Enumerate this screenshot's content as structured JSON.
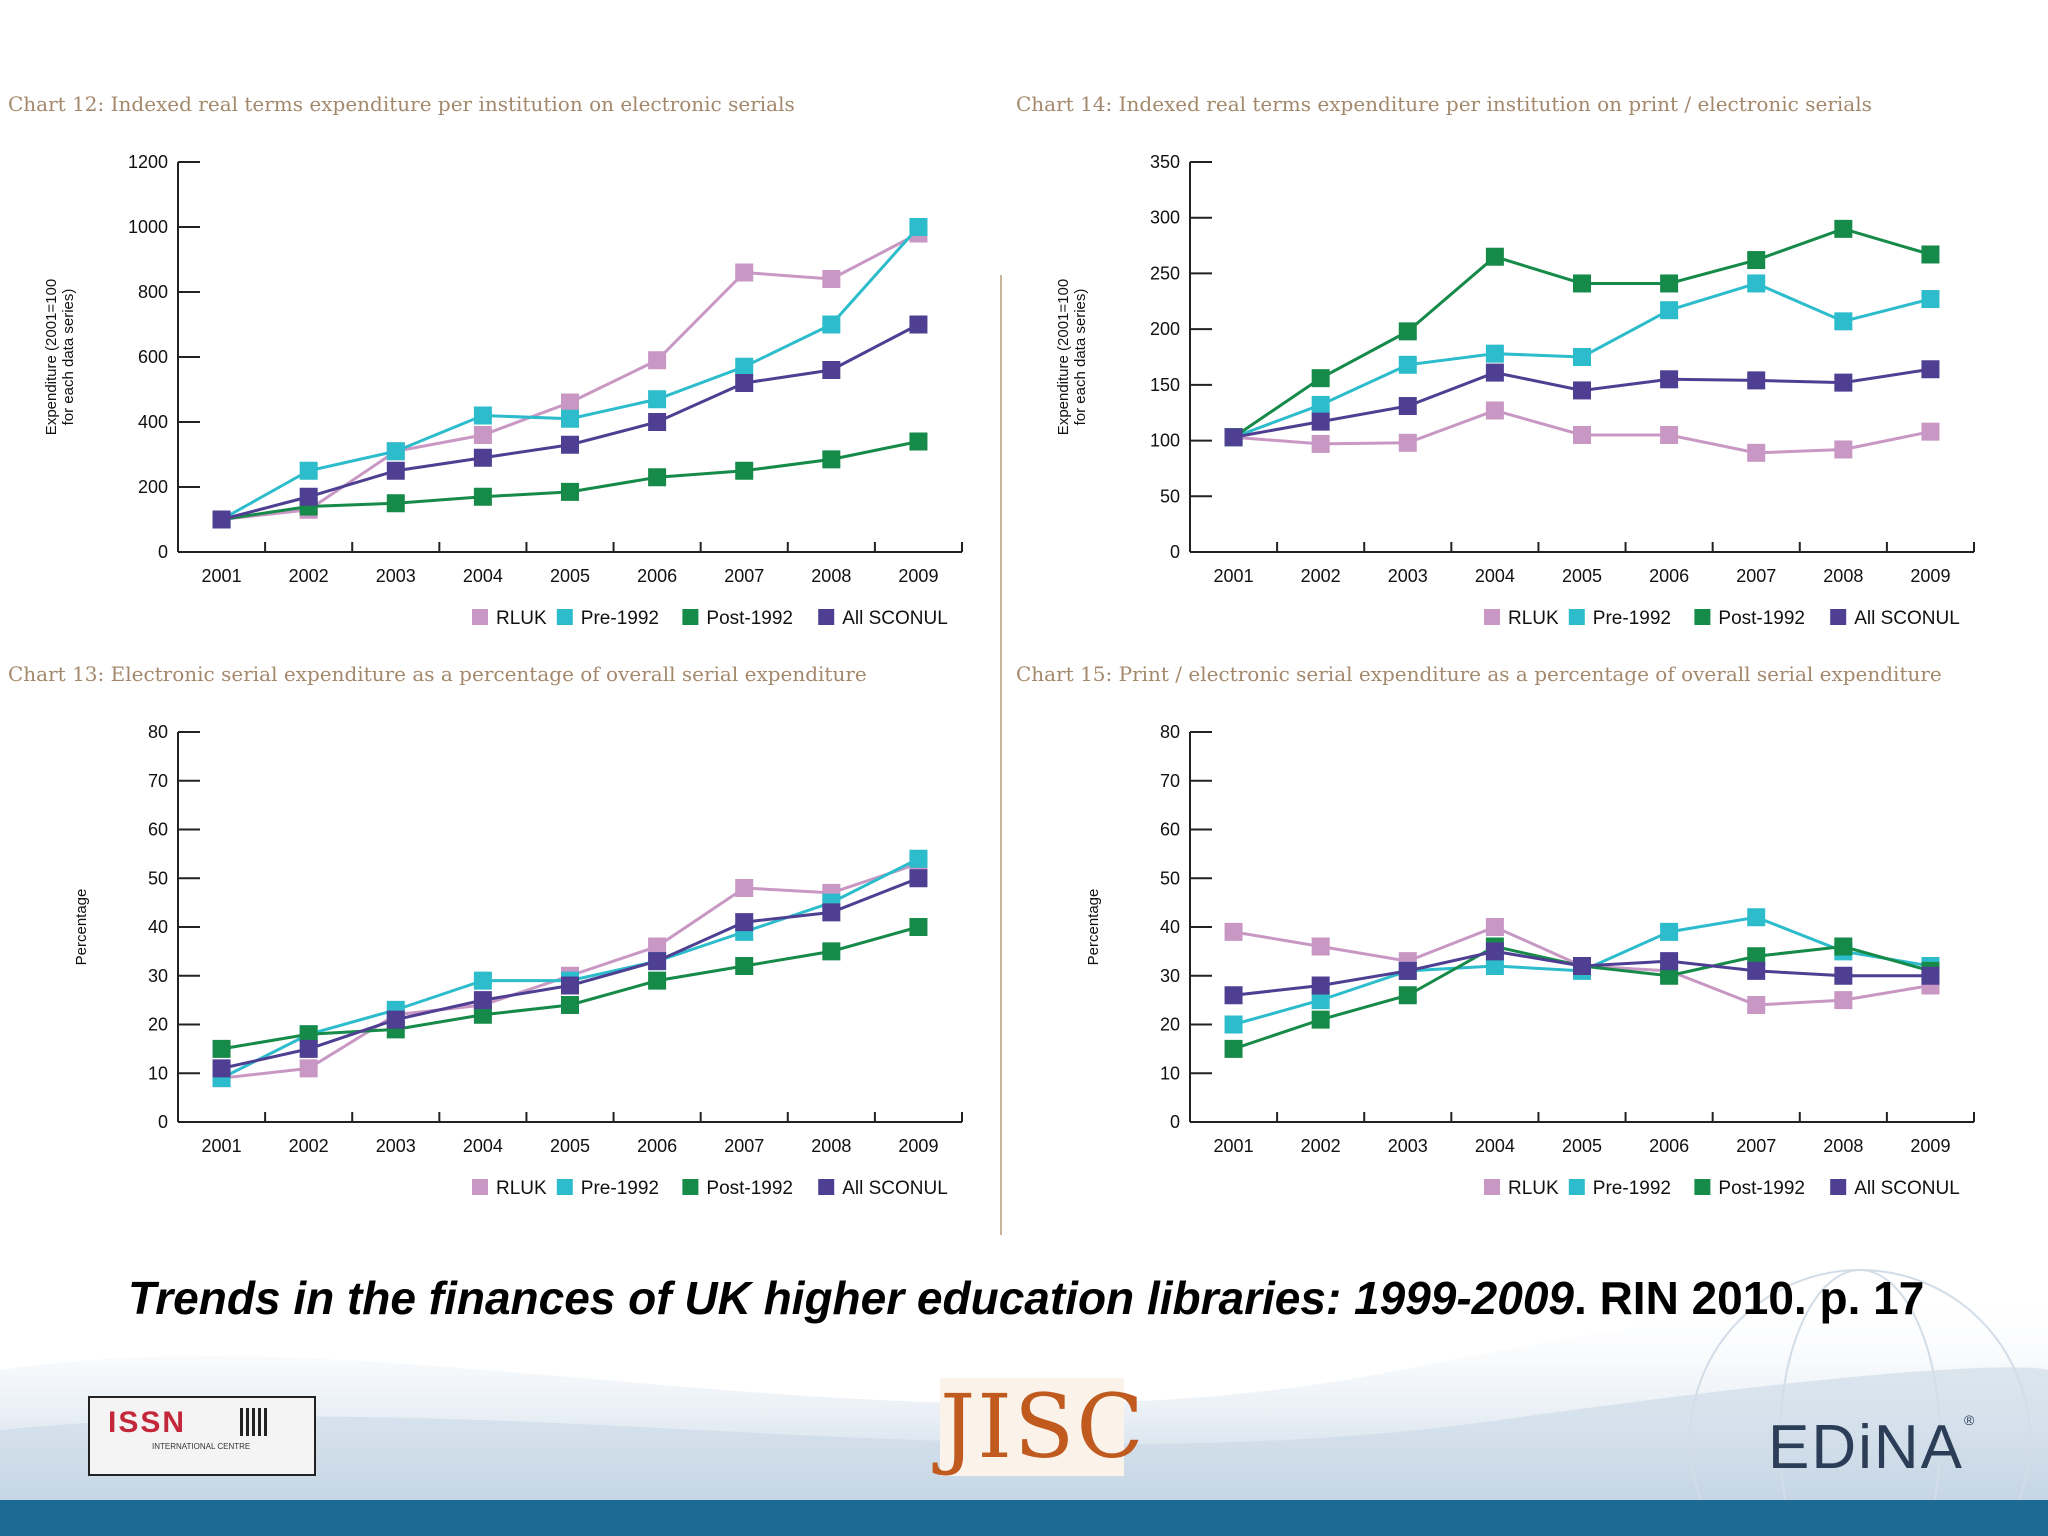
{
  "slide": {
    "citation_title": "Trends in the finances of UK higher education libraries: 1999-2009",
    "citation_rest": ". RIN 2010. p. 17",
    "logos": {
      "issn": "ISSN",
      "issn_sub": "INTERNATIONAL CENTRE",
      "jisc": "JISC",
      "edina": "EDiNA"
    }
  },
  "colors": {
    "RLUK": "#c897c4",
    "Pre-1992": "#2cbccb",
    "Post-1992": "#168a48",
    "All SCONUL": "#4e3f92",
    "title": "#a4886b",
    "bottom_bar": "#1d6a94"
  },
  "chart_data": [
    {
      "id": "chart12",
      "type": "line",
      "title": "Chart 12: Indexed real terms expenditure per institution on electronic serials",
      "ylabel": "Expenditure (2001=100\nfor each data series)",
      "xlabel": "",
      "x": [
        "2001",
        "2002",
        "2003",
        "2004",
        "2005",
        "2006",
        "2007",
        "2008",
        "2009"
      ],
      "ylim": [
        0,
        1200
      ],
      "yticks": [
        0,
        200,
        400,
        600,
        800,
        1000,
        1200
      ],
      "series": [
        {
          "name": "RLUK",
          "values": [
            100,
            130,
            310,
            360,
            460,
            590,
            860,
            840,
            980
          ]
        },
        {
          "name": "Pre-1992",
          "values": [
            100,
            250,
            310,
            420,
            410,
            470,
            570,
            700,
            1000
          ]
        },
        {
          "name": "Post-1992",
          "values": [
            100,
            140,
            150,
            170,
            185,
            230,
            250,
            285,
            340
          ]
        },
        {
          "name": "All SCONUL",
          "values": [
            100,
            170,
            250,
            290,
            330,
            400,
            520,
            560,
            700
          ]
        }
      ],
      "legend": "bottom-right"
    },
    {
      "id": "chart14",
      "type": "line",
      "title": "Chart 14: Indexed real terms expenditure per institution on print / electronic serials",
      "ylabel": "Expenditure (2001=100\nfor each data series)",
      "xlabel": "",
      "x": [
        "2001",
        "2002",
        "2003",
        "2004",
        "2005",
        "2006",
        "2007",
        "2008",
        "2009"
      ],
      "ylim": [
        0,
        350
      ],
      "yticks": [
        0,
        50,
        100,
        150,
        200,
        250,
        300,
        350
      ],
      "series": [
        {
          "name": "RLUK",
          "values": [
            103,
            97,
            98,
            127,
            105,
            105,
            89,
            92,
            108
          ]
        },
        {
          "name": "Pre-1992",
          "values": [
            103,
            132,
            168,
            178,
            175,
            217,
            241,
            207,
            227
          ]
        },
        {
          "name": "Post-1992",
          "values": [
            103,
            156,
            198,
            265,
            241,
            241,
            262,
            290,
            267
          ]
        },
        {
          "name": "All SCONUL",
          "values": [
            103,
            117,
            131,
            161,
            145,
            155,
            154,
            152,
            164
          ]
        }
      ],
      "legend": "bottom-right"
    },
    {
      "id": "chart13",
      "type": "line",
      "title": "Chart 13: Electronic serial expenditure as a percentage of overall serial expenditure",
      "ylabel": "Percentage",
      "xlabel": "",
      "x": [
        "2001",
        "2002",
        "2003",
        "2004",
        "2005",
        "2006",
        "2007",
        "2008",
        "2009"
      ],
      "ylim": [
        0,
        80
      ],
      "yticks": [
        0,
        10,
        20,
        30,
        40,
        50,
        60,
        70,
        80
      ],
      "series": [
        {
          "name": "RLUK",
          "values": [
            9,
            11,
            22,
            24,
            30,
            36,
            48,
            47,
            53
          ]
        },
        {
          "name": "Pre-1992",
          "values": [
            9,
            18,
            23,
            29,
            29,
            33,
            39,
            45,
            54
          ]
        },
        {
          "name": "Post-1992",
          "values": [
            15,
            18,
            19,
            22,
            24,
            29,
            32,
            35,
            40
          ]
        },
        {
          "name": "All SCONUL",
          "values": [
            11,
            15,
            21,
            25,
            28,
            33,
            41,
            43,
            50
          ]
        }
      ],
      "legend": "bottom-right"
    },
    {
      "id": "chart15",
      "type": "line",
      "title": "Chart 15: Print / electronic serial expenditure as a percentage of overall serial expenditure",
      "ylabel": "Percentage",
      "xlabel": "",
      "x": [
        "2001",
        "2002",
        "2003",
        "2004",
        "2005",
        "2006",
        "2007",
        "2008",
        "2009"
      ],
      "ylim": [
        0,
        80
      ],
      "yticks": [
        0,
        10,
        20,
        30,
        40,
        50,
        60,
        70,
        80
      ],
      "series": [
        {
          "name": "RLUK",
          "values": [
            39,
            36,
            33,
            40,
            32,
            31,
            24,
            25,
            28
          ]
        },
        {
          "name": "Pre-1992",
          "values": [
            20,
            25,
            31,
            32,
            31,
            39,
            42,
            35,
            32
          ]
        },
        {
          "name": "Post-1992",
          "values": [
            15,
            21,
            26,
            36,
            32,
            30,
            34,
            36,
            31
          ]
        },
        {
          "name": "All SCONUL",
          "values": [
            26,
            28,
            31,
            35,
            32,
            33,
            31,
            30,
            30
          ]
        }
      ],
      "legend": "bottom-right"
    }
  ]
}
